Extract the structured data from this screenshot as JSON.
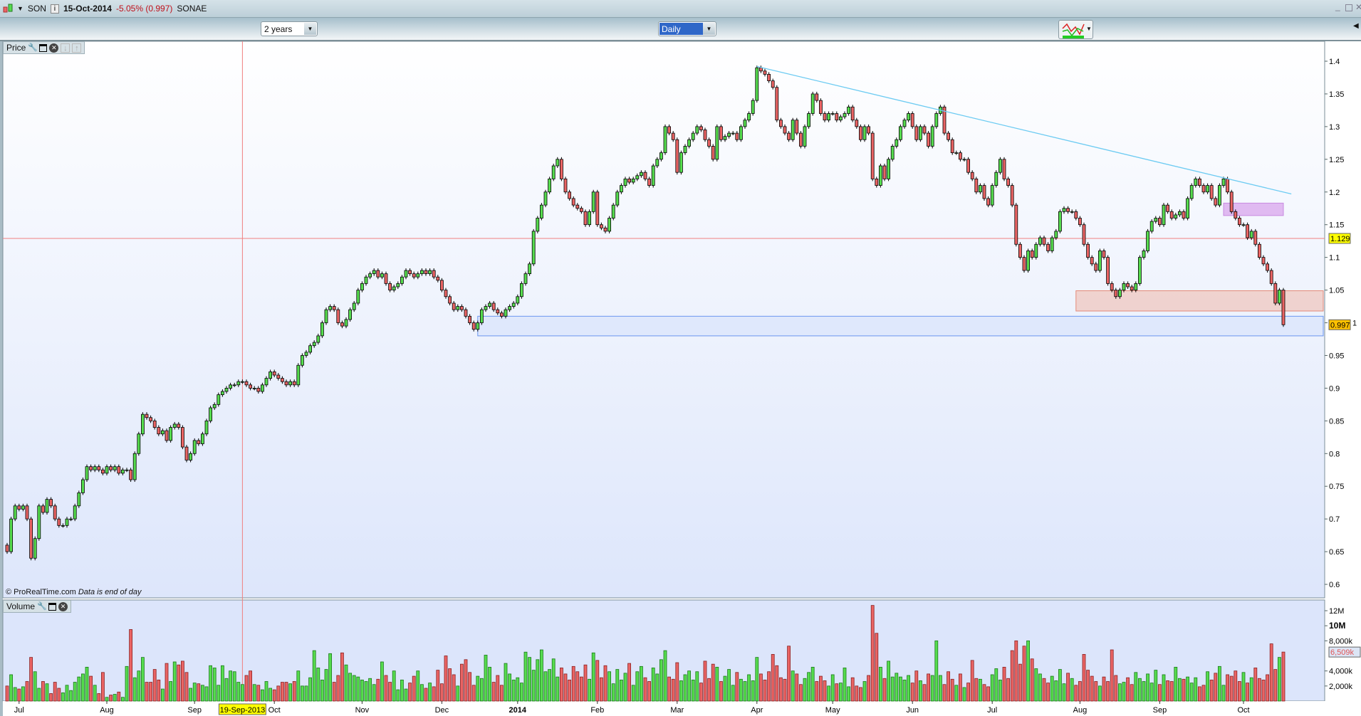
{
  "titlebar": {
    "symbol": "SON",
    "date": "15-Oct-2014",
    "change": "-5.05% (0.997)",
    "name": "SONAE",
    "window_buttons": [
      "minimize-icon",
      "maximize-icon",
      "close-icon"
    ]
  },
  "toolbar": {
    "period": "2 years",
    "interval": "Daily",
    "chart_type_icon": "chart-style-icon"
  },
  "panels": {
    "price_label": "Price",
    "volume_label": "Volume"
  },
  "footer": {
    "copyright": "© ProRealTime.com",
    "note": "Data is end of day"
  },
  "colors": {
    "up": "#56dc4e",
    "down": "#ea6464",
    "trendline": "#6ccbf2",
    "support_zone": "#6a96f0",
    "resistance_zone": "#e58a78",
    "target_zone": "#c88ae0",
    "crosshair": "#f08080",
    "cursor_label": "#ffff00",
    "last_label": "#ffc000"
  },
  "chart_data": [
    {
      "type": "candlestick",
      "title": "Price",
      "ylim": [
        0.58,
        1.44
      ],
      "yticks": [
        0.6,
        0.65,
        0.7,
        0.75,
        0.8,
        0.85,
        0.9,
        0.95,
        1,
        1.05,
        1.1,
        1.15,
        1.2,
        1.25,
        1.3,
        1.35,
        1.4
      ],
      "ytick_labels": [
        "0.6",
        "0.65",
        "0.7",
        "0.75",
        "0.8",
        "0.85",
        "0.9",
        "0.95",
        "1",
        "1.05",
        "1.1",
        "1.15",
        "1.2",
        "1.25",
        "1.3",
        "1.35",
        "1.4"
      ],
      "first_open": 0.66,
      "close": [
        0.65,
        0.7,
        0.72,
        0.715,
        0.72,
        0.7,
        0.64,
        0.67,
        0.72,
        0.71,
        0.73,
        0.72,
        0.7,
        0.69,
        0.69,
        0.7,
        0.7,
        0.72,
        0.74,
        0.76,
        0.78,
        0.775,
        0.78,
        0.775,
        0.77,
        0.78,
        0.775,
        0.78,
        0.77,
        0.775,
        0.775,
        0.76,
        0.8,
        0.83,
        0.86,
        0.855,
        0.85,
        0.84,
        0.83,
        0.835,
        0.82,
        0.84,
        0.845,
        0.84,
        0.81,
        0.79,
        0.8,
        0.82,
        0.815,
        0.83,
        0.85,
        0.87,
        0.875,
        0.89,
        0.895,
        0.9,
        0.905,
        0.905,
        0.91,
        0.91,
        0.905,
        0.9,
        0.9,
        0.895,
        0.905,
        0.915,
        0.925,
        0.92,
        0.915,
        0.91,
        0.905,
        0.91,
        0.905,
        0.935,
        0.95,
        0.955,
        0.965,
        0.97,
        0.98,
        1.0,
        1.02,
        1.025,
        1.02,
        1.0,
        0.995,
        1.005,
        1.02,
        1.03,
        1.05,
        1.06,
        1.07,
        1.075,
        1.08,
        1.07,
        1.075,
        1.06,
        1.05,
        1.055,
        1.06,
        1.07,
        1.08,
        1.075,
        1.07,
        1.075,
        1.08,
        1.075,
        1.08,
        1.07,
        1.065,
        1.05,
        1.04,
        1.03,
        1.02,
        1.025,
        1.02,
        1.01,
        1.0,
        0.99,
        1.0,
        1.02,
        1.025,
        1.03,
        1.02,
        1.015,
        1.01,
        1.02,
        1.025,
        1.03,
        1.04,
        1.06,
        1.075,
        1.09,
        1.14,
        1.16,
        1.18,
        1.2,
        1.22,
        1.24,
        1.25,
        1.22,
        1.2,
        1.19,
        1.18,
        1.175,
        1.17,
        1.15,
        1.17,
        1.2,
        1.15,
        1.145,
        1.14,
        1.16,
        1.18,
        1.2,
        1.21,
        1.22,
        1.215,
        1.22,
        1.225,
        1.23,
        1.22,
        1.21,
        1.24,
        1.25,
        1.26,
        1.3,
        1.29,
        1.28,
        1.23,
        1.26,
        1.27,
        1.28,
        1.29,
        1.3,
        1.295,
        1.28,
        1.27,
        1.25,
        1.3,
        1.28,
        1.285,
        1.29,
        1.29,
        1.28,
        1.3,
        1.31,
        1.32,
        1.34,
        1.39,
        1.385,
        1.38,
        1.37,
        1.36,
        1.31,
        1.3,
        1.29,
        1.28,
        1.31,
        1.29,
        1.27,
        1.3,
        1.32,
        1.35,
        1.34,
        1.32,
        1.31,
        1.32,
        1.32,
        1.31,
        1.315,
        1.32,
        1.33,
        1.31,
        1.3,
        1.28,
        1.3,
        1.29,
        1.22,
        1.21,
        1.24,
        1.22,
        1.25,
        1.27,
        1.28,
        1.3,
        1.31,
        1.32,
        1.3,
        1.28,
        1.3,
        1.29,
        1.27,
        1.3,
        1.32,
        1.33,
        1.29,
        1.28,
        1.26,
        1.26,
        1.25,
        1.25,
        1.23,
        1.22,
        1.2,
        1.21,
        1.19,
        1.18,
        1.21,
        1.23,
        1.25,
        1.22,
        1.21,
        1.18,
        1.12,
        1.1,
        1.08,
        1.11,
        1.1,
        1.12,
        1.13,
        1.12,
        1.11,
        1.13,
        1.14,
        1.17,
        1.175,
        1.17,
        1.17,
        1.16,
        1.15,
        1.12,
        1.1,
        1.09,
        1.08,
        1.11,
        1.1,
        1.06,
        1.05,
        1.04,
        1.05,
        1.06,
        1.055,
        1.05,
        1.06,
        1.1,
        1.11,
        1.14,
        1.155,
        1.16,
        1.15,
        1.18,
        1.17,
        1.16,
        1.165,
        1.17,
        1.16,
        1.19,
        1.21,
        1.22,
        1.21,
        1.2,
        1.21,
        1.19,
        1.18,
        1.21,
        1.22,
        1.2,
        1.17,
        1.16,
        1.15,
        1.15,
        1.13,
        1.14,
        1.12,
        1.1,
        1.09,
        1.08,
        1.06,
        1.03,
        1.05,
        0.997
      ],
      "trendline": {
        "from": [
          188,
          1.392
        ],
        "to": [
          322,
          1.197
        ]
      },
      "zones": [
        {
          "name": "support",
          "from_index": 118,
          "to_index": 330,
          "top": 1.01,
          "bottom": 0.98
        },
        {
          "name": "resistance",
          "from_index": 268,
          "to_index": 332,
          "top": 1.049,
          "bottom": 1.018
        },
        {
          "name": "target",
          "from_index": 305,
          "to_index": 320,
          "top": 1.183,
          "bottom": 1.164
        }
      ],
      "crosshair": {
        "index": 59,
        "price": 1.129,
        "price_label": "1.129",
        "date_label": "19-Sep-2013"
      },
      "last_price_label": "0.997"
    },
    {
      "type": "bar",
      "title": "Volume",
      "unit": "M",
      "ylim": [
        0,
        13.4
      ],
      "ytick_labels": [
        {
          "v": 12,
          "t": "12M"
        },
        {
          "v": 10,
          "t": "10M",
          "bold": true
        },
        {
          "v": 8,
          "t": "8,000k"
        },
        {
          "v": 4,
          "t": "4,000k"
        },
        {
          "v": 2,
          "t": "2,000k"
        }
      ],
      "last_label": {
        "v": 6.509,
        "t": "6,509k"
      },
      "values": [
        2.0,
        3.5,
        1.8,
        1.6,
        1.9,
        2.6,
        5.8,
        3.9,
        1.7,
        2.6,
        2.3,
        1.0,
        2.5,
        1.7,
        1.1,
        2.1,
        1.4,
        2.5,
        3.2,
        3.6,
        4.5,
        3.3,
        2.1,
        1.0,
        3.8,
        0.5,
        0.8,
        0.9,
        1.2,
        0.5,
        4.6,
        9.5,
        3.1,
        4.0,
        5.8,
        2.5,
        2.5,
        4.2,
        2.8,
        1.6,
        5.0,
        2.6,
        5.2,
        4.8,
        5.3,
        3.8,
        1.7,
        2.4,
        2.3,
        2.1,
        1.9,
        4.7,
        4.4,
        2.1,
        4.7,
        3.0,
        4.0,
        3.9,
        2.5,
        2.2,
        3.4,
        4.0,
        2.2,
        2.1,
        1.5,
        2.6,
        1.7,
        1.5,
        2.0,
        2.5,
        2.5,
        2.3,
        2.6,
        4.0,
        2.0,
        2.0,
        3.1,
        6.7,
        4.4,
        2.8,
        4.2,
        6.3,
        2.5,
        3.4,
        6.4,
        4.8,
        3.7,
        3.4,
        3.2,
        2.8,
        2.6,
        3.0,
        2.2,
        2.9,
        5.2,
        3.4,
        2.5,
        4.0,
        1.5,
        2.8,
        1.6,
        2.4,
        3.3,
        4.0,
        2.2,
        1.7,
        2.4,
        1.9,
        4.1,
        2.3,
        6.0,
        4.3,
        3.5,
        2.0,
        4.9,
        5.5,
        3.8,
        2.1,
        3.3,
        3.0,
        6.1,
        4.5,
        2.5,
        3.4,
        2.1,
        5.0,
        3.6,
        2.8,
        3.1,
        2.4,
        6.5,
        5.8,
        4.1,
        5.5,
        6.8,
        3.9,
        4.2,
        5.6,
        3.2,
        4.4,
        3.6,
        2.8,
        4.6,
        3.9,
        3.2,
        4.8,
        2.9,
        6.4,
        5.4,
        3.1,
        4.7,
        3.9,
        2.3,
        4.2,
        2.8,
        3.7,
        5.0,
        2.1,
        3.9,
        4.6,
        3.1,
        2.6,
        4.4,
        3.6,
        5.5,
        6.7,
        3.2,
        2.9,
        5.1,
        2.7,
        3.5,
        4.0,
        2.8,
        3.9,
        2.4,
        5.3,
        3.0,
        4.9,
        4.5,
        2.6,
        3.3,
        4.2,
        2.1,
        3.8,
        2.9,
        2.6,
        3.5,
        2.7,
        5.8,
        3.6,
        2.8,
        3.9,
        6.2,
        4.7,
        3.1,
        2.9,
        7.3,
        4.0,
        3.6,
        2.2,
        3.0,
        3.8,
        4.5,
        2.6,
        3.3,
        2.7,
        2.0,
        3.5,
        2.3,
        2.4,
        4.4,
        1.9,
        3.1,
        2.0,
        1.8,
        2.6,
        3.4,
        12.7,
        9.0,
        4.5,
        3.0,
        5.3,
        3.2,
        3.7,
        3.2,
        2.8,
        3.4,
        2.4,
        4.0,
        2.7,
        2.2,
        3.6,
        3.4,
        8.0,
        3.4,
        2.2,
        3.9,
        2.9,
        2.1,
        3.6,
        1.8,
        2.4,
        5.4,
        3.0,
        2.9,
        2.2,
        1.9,
        3.5,
        4.3,
        2.8,
        4.5,
        3.0,
        6.7,
        8.0,
        4.9,
        7.3,
        8.0,
        5.6,
        4.3,
        3.6,
        3.0,
        2.4,
        3.3,
        2.7,
        4.2,
        2.3,
        3.7,
        3.0,
        2.1,
        2.6,
        6.2,
        4.1,
        3.3,
        2.6,
        2.0,
        3.2,
        2.6,
        6.8,
        3.4,
        2.3,
        2.5,
        3.1,
        2.2,
        3.8,
        3.0,
        2.6,
        3.6,
        2.4,
        4.1,
        2.2,
        3.5,
        2.7,
        2.6,
        4.5,
        3.0,
        2.9,
        3.2,
        2.4,
        3.1,
        1.9,
        2.1,
        3.9,
        2.8,
        3.7,
        4.6,
        2.1,
        3.5,
        3.3,
        4.0,
        2.6,
        3.8,
        2.4,
        3.1,
        4.4,
        3.0,
        2.8,
        3.5,
        7.6,
        4.2,
        5.8,
        6.509
      ]
    },
    {
      "type": "x-axis",
      "labels": [
        {
          "i": 3,
          "t": "Jul"
        },
        {
          "i": 25,
          "t": "Aug"
        },
        {
          "i": 47,
          "t": "Sep"
        },
        {
          "i": 67,
          "t": "Oct"
        },
        {
          "i": 89,
          "t": "Nov"
        },
        {
          "i": 109,
          "t": "Dec"
        },
        {
          "i": 128,
          "t": "2014",
          "bold": true
        },
        {
          "i": 148,
          "t": "Feb"
        },
        {
          "i": 168,
          "t": "Mar"
        },
        {
          "i": 188,
          "t": "Apr"
        },
        {
          "i": 207,
          "t": "May"
        },
        {
          "i": 227,
          "t": "Jun"
        },
        {
          "i": 247,
          "t": "Jul"
        },
        {
          "i": 269,
          "t": "Aug"
        },
        {
          "i": 289,
          "t": "Sep"
        },
        {
          "i": 310,
          "t": "Oct"
        }
      ]
    }
  ]
}
